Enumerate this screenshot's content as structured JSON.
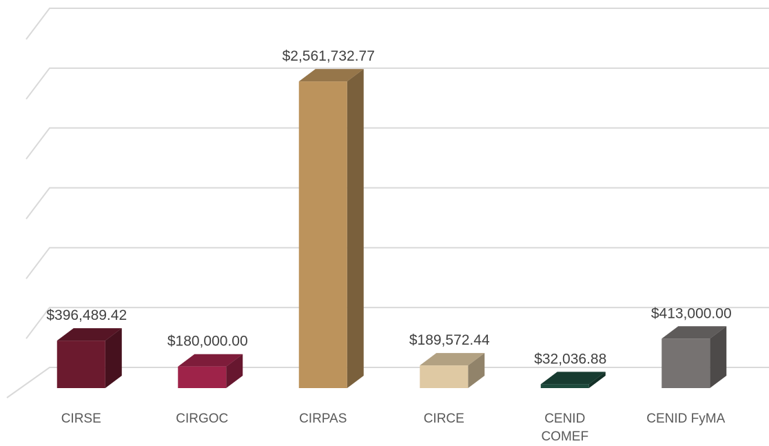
{
  "chart_data": {
    "type": "bar3d",
    "categories": [
      "CIRSE",
      "CIRGOC",
      "CIRPAS",
      "CIRCE",
      "CENID COMEF",
      "CENID FyMA"
    ],
    "values": [
      396489.42,
      180000.0,
      2561732.77,
      189572.44,
      32036.88,
      413000.0
    ],
    "value_labels": [
      "$396,489.42",
      "$180,000.00",
      "$2,561,732.77",
      "$189,572.44",
      "$32,036.88",
      "$413,000.00"
    ],
    "colors": [
      "#6b1a2e",
      "#9e2349",
      "#bc935c",
      "#dfc9a3",
      "#1d4a3c",
      "#767271"
    ],
    "ylim": [
      0,
      3000000
    ],
    "yticks": [
      0,
      500000,
      1000000,
      1500000,
      2000000,
      2500000,
      3000000
    ],
    "grid": true
  }
}
